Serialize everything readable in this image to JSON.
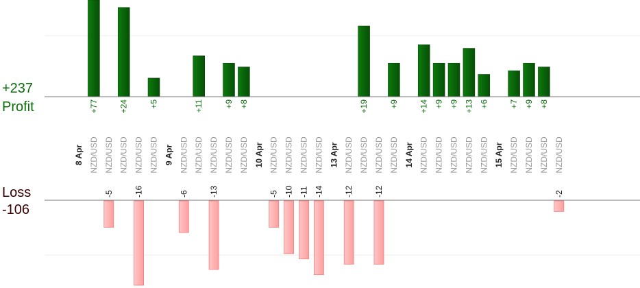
{
  "summary": {
    "profit_total": "+237",
    "profit_label": "Profit",
    "loss_label": "Loss",
    "loss_total": "-106"
  },
  "colors": {
    "profit_bar": "#0b6a0b",
    "profit_text": "#0a6e0a",
    "loss_bar": "#ffb3b3",
    "loss_bar_stroke": "#f08080",
    "axis": "#777777",
    "grid": "#eeeeee",
    "date_text": "#222222",
    "pair_text": "#999999"
  },
  "chart_data": {
    "type": "bar",
    "title": "",
    "xlabel": "",
    "ylabel": "",
    "profit_scale_max": 26,
    "loss_scale_max": 16,
    "columns": [
      {
        "kind": "date",
        "label": "8 Apr"
      },
      {
        "kind": "trade",
        "pair": "NZD/USD",
        "value": 77,
        "label": "+77"
      },
      {
        "kind": "trade",
        "pair": "NZD/USD",
        "value": -5,
        "label": "-5"
      },
      {
        "kind": "trade",
        "pair": "NZD/USD",
        "value": 24,
        "label": "+24"
      },
      {
        "kind": "trade",
        "pair": "NZD/USD",
        "value": -16,
        "label": "-16"
      },
      {
        "kind": "trade",
        "pair": "NZD/USD",
        "value": 5,
        "label": "+5"
      },
      {
        "kind": "date",
        "label": "9 Apr"
      },
      {
        "kind": "trade",
        "pair": "NZD/USD",
        "value": -6,
        "label": "-6"
      },
      {
        "kind": "trade",
        "pair": "NZD/USD",
        "value": 11,
        "label": "+11"
      },
      {
        "kind": "trade",
        "pair": "NZD/USD",
        "value": -13,
        "label": "-13"
      },
      {
        "kind": "trade",
        "pair": "NZD/USD",
        "value": 9,
        "label": "+9"
      },
      {
        "kind": "trade",
        "pair": "NZD/USD",
        "value": 8,
        "label": "+8"
      },
      {
        "kind": "date",
        "label": "10 Apr"
      },
      {
        "kind": "trade",
        "pair": "NZD/USD",
        "value": -5,
        "label": "-5"
      },
      {
        "kind": "trade",
        "pair": "NZD/USD",
        "value": -10,
        "label": "-10"
      },
      {
        "kind": "trade",
        "pair": "NZD/USD",
        "value": -11,
        "label": "-11"
      },
      {
        "kind": "trade",
        "pair": "NZD/USD",
        "value": -14,
        "label": "-14"
      },
      {
        "kind": "date",
        "label": "13 Apr"
      },
      {
        "kind": "trade",
        "pair": "NZD/USD",
        "value": -12,
        "label": "-12"
      },
      {
        "kind": "trade",
        "pair": "NZD/USD",
        "value": 19,
        "label": "+19"
      },
      {
        "kind": "trade",
        "pair": "NZD/USD",
        "value": -12,
        "label": "-12"
      },
      {
        "kind": "trade",
        "pair": "NZD/USD",
        "value": 9,
        "label": "+9"
      },
      {
        "kind": "date",
        "label": "14 Apr"
      },
      {
        "kind": "trade",
        "pair": "NZD/USD",
        "value": 14,
        "label": "+14"
      },
      {
        "kind": "trade",
        "pair": "NZD/USD",
        "value": 9,
        "label": "+9"
      },
      {
        "kind": "trade",
        "pair": "NZD/USD",
        "value": 9,
        "label": "+9"
      },
      {
        "kind": "trade",
        "pair": "NZD/USD",
        "value": 13,
        "label": "+13"
      },
      {
        "kind": "trade",
        "pair": "NZD/USD",
        "value": 6,
        "label": "+6"
      },
      {
        "kind": "date",
        "label": "15 Apr"
      },
      {
        "kind": "trade",
        "pair": "NZD/USD",
        "value": 7,
        "label": "+7"
      },
      {
        "kind": "trade",
        "pair": "NZD/USD",
        "value": 9,
        "label": "+9"
      },
      {
        "kind": "trade",
        "pair": "NZD/USD",
        "value": 8,
        "label": "+8"
      },
      {
        "kind": "trade",
        "pair": "NZD/USD",
        "value": -2,
        "label": "-2"
      }
    ]
  }
}
